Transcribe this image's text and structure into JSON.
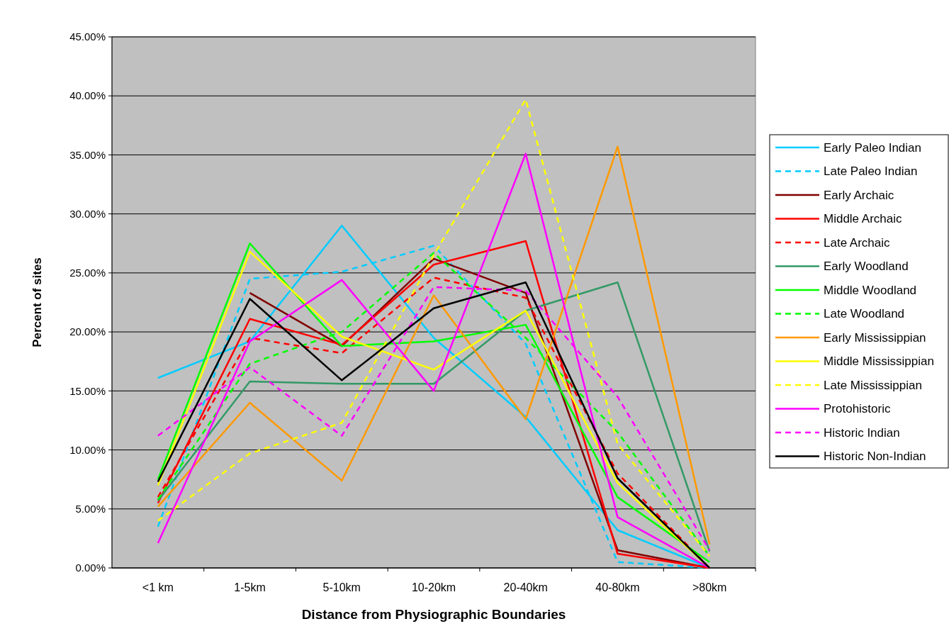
{
  "chart_data": {
    "type": "line",
    "xlabel": "Distance from Physiographic Boundaries",
    "ylabel": "Percent of sites",
    "categories": [
      "<1 km",
      "1-5km",
      "5-10km",
      "10-20km",
      "20-40km",
      "40-80km",
      ">80km"
    ],
    "ylim": [
      0,
      45
    ],
    "yticks": [
      {
        "value": 0,
        "label": "0.00%"
      },
      {
        "value": 5,
        "label": "5.00%"
      },
      {
        "value": 10,
        "label": "10.00%"
      },
      {
        "value": 15,
        "label": "15.00%"
      },
      {
        "value": 20,
        "label": "20.00%"
      },
      {
        "value": 25,
        "label": "25.00%"
      },
      {
        "value": 30,
        "label": "30.00%"
      },
      {
        "value": 35,
        "label": "35.00%"
      },
      {
        "value": 40,
        "label": "40.00%"
      },
      {
        "value": 45,
        "label": "45.00%"
      }
    ],
    "grid": "y",
    "legend": "right",
    "marker": "none",
    "series": [
      {
        "name": "Early Paleo Indian",
        "color": "#00ccff",
        "line_style": "solid",
        "values": [
          16.1,
          19.2,
          29.0,
          19.5,
          12.8,
          3.2,
          0
        ]
      },
      {
        "name": "Late Paleo Indian",
        "color": "#00ccff",
        "line_style": "dashed",
        "values": [
          3.5,
          24.5,
          25.1,
          27.3,
          19.0,
          0.5,
          0
        ]
      },
      {
        "name": "Early Archaic",
        "color": "#800000",
        "line_style": "solid",
        "values": [
          null,
          23.3,
          18.8,
          26.2,
          23.3,
          1.5,
          0
        ]
      },
      {
        "name": "Middle Archaic",
        "color": "#ff0000",
        "line_style": "solid",
        "values": [
          5.5,
          21.1,
          18.9,
          25.7,
          27.7,
          1.2,
          0
        ]
      },
      {
        "name": "Late Archaic",
        "color": "#ff0000",
        "line_style": "dashed",
        "values": [
          6.0,
          19.5,
          18.2,
          24.6,
          22.9,
          8.0,
          0
        ]
      },
      {
        "name": "Early Woodland",
        "color": "#339966",
        "line_style": "solid",
        "values": [
          5.7,
          15.8,
          15.6,
          15.6,
          21.8,
          24.2,
          1.4
        ]
      },
      {
        "name": "Middle Woodland",
        "color": "#00ff00",
        "line_style": "solid",
        "values": [
          7.5,
          27.5,
          18.8,
          19.2,
          20.6,
          6.0,
          0.5
        ]
      },
      {
        "name": "Late Woodland",
        "color": "#00ff00",
        "line_style": "dashed",
        "values": [
          5.8,
          17.3,
          20.0,
          26.7,
          19.5,
          11.5,
          1.0
        ]
      },
      {
        "name": "Early Mississippian",
        "color": "#ff9900",
        "line_style": "solid",
        "values": [
          5.2,
          14.0,
          7.4,
          23.1,
          12.6,
          35.7,
          2.0
        ]
      },
      {
        "name": "Middle Mississippian",
        "color": "#ffff00",
        "line_style": "solid",
        "values": [
          7.0,
          26.8,
          19.6,
          16.8,
          21.8,
          7.2,
          0
        ]
      },
      {
        "name": "Late Mississippian",
        "color": "#ffff00",
        "line_style": "dashed",
        "values": [
          4.0,
          9.7,
          12.3,
          26.5,
          39.7,
          10.5,
          1.0
        ]
      },
      {
        "name": "Protohistoric",
        "color": "#ff00ff",
        "line_style": "solid",
        "values": [
          2.1,
          19.2,
          24.4,
          15.0,
          35.1,
          4.3,
          0
        ]
      },
      {
        "name": "Historic Indian",
        "color": "#ff00ff",
        "line_style": "dashed",
        "values": [
          11.2,
          17.0,
          11.2,
          23.8,
          23.5,
          14.5,
          1.5
        ]
      },
      {
        "name": "Historic Non-Indian",
        "color": "#000000",
        "line_style": "solid",
        "values": [
          7.3,
          22.8,
          15.9,
          22.0,
          24.2,
          7.6,
          0
        ]
      }
    ]
  }
}
